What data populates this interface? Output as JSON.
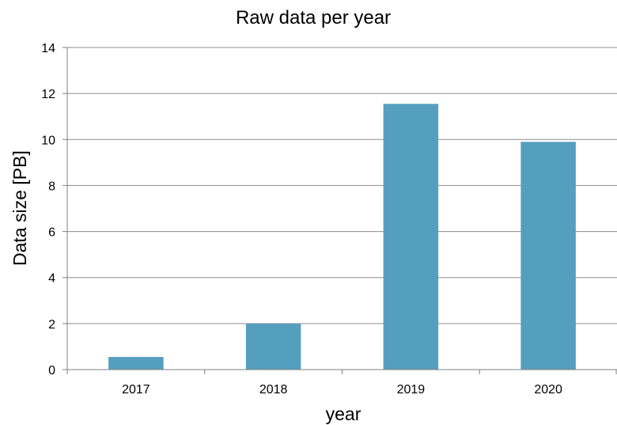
{
  "chart_data": {
    "type": "bar",
    "title": "Raw data per year",
    "xlabel": "year",
    "ylabel": "Data size [PB]",
    "categories": [
      "2017",
      "2018",
      "2019",
      "2020"
    ],
    "values": [
      0.55,
      2.0,
      11.55,
      9.9
    ],
    "ylim": [
      0,
      14
    ],
    "yticks": [
      "0",
      "2",
      "4",
      "6",
      "8",
      "10",
      "12",
      "14"
    ],
    "grid": true,
    "bar_color": "#559fbe",
    "grid_color": "#8c8c8c",
    "axis_color": "#7f7f7f"
  }
}
